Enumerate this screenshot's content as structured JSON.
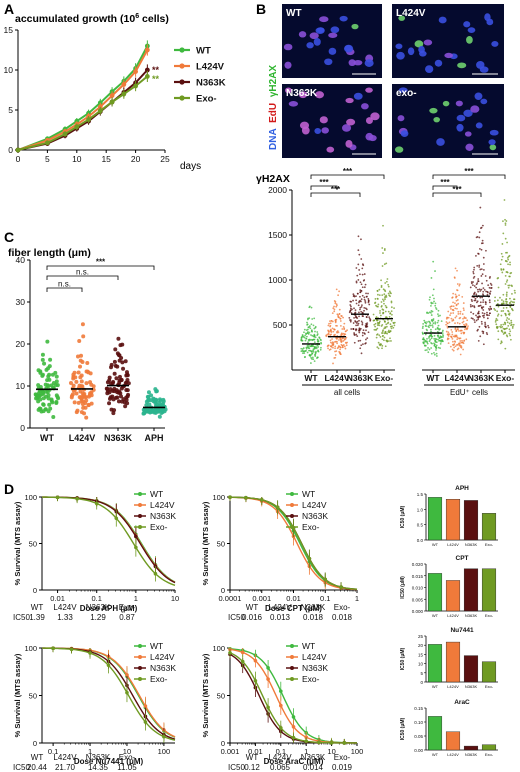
{
  "panels": {
    "A": "A",
    "B": "B",
    "C": "C",
    "D": "D"
  },
  "colors": {
    "WT": "#3fb93f",
    "L424V": "#f07a3a",
    "N363K": "#5a1010",
    "Exo-": "#6f9a22",
    "APH": "#2bb48e"
  },
  "panelA": {
    "ylabel": "accumulated growth (10",
    "ylabel_sup": "6",
    "ylabel_end": " cells)",
    "xunit": "days",
    "sig": "**",
    "legend": [
      "WT",
      "L424V",
      "N363K",
      "Exo-"
    ]
  },
  "panelB": {
    "images": [
      {
        "label": "WT",
        "label_color": "#ffffff"
      },
      {
        "label": "L424V",
        "label_color": "#ffffff"
      },
      {
        "label": "N363K",
        "label_color": "#ffffff"
      },
      {
        "label": "exo-",
        "label_color": "#ffffff"
      }
    ],
    "channel_labels": [
      {
        "text": "DNA",
        "color": "#2f5fe0"
      },
      {
        "text": "EdU",
        "color": "#d21a1a"
      },
      {
        "text": "γH2AX",
        "color": "#2fb52f"
      }
    ],
    "ylabel": "γH2AX",
    "groups": [
      "all cells",
      "EdU⁺ cells"
    ],
    "categories": [
      "WT",
      "L424V",
      "N363K",
      "Exo-",
      "WT",
      "L424V",
      "N363K",
      "Exo-"
    ],
    "sig": [
      "***",
      "***",
      "***",
      "***",
      "***",
      "***"
    ]
  },
  "panelC": {
    "ylabel": "fiber length (μm)",
    "sig": [
      "n.s.",
      "n.s.",
      "***"
    ]
  },
  "panelD": {
    "legend": [
      "WT",
      "L424V",
      "N363K",
      "Exo-"
    ],
    "ic50_head": "IC50",
    "ic50_table": [
      {
        "labels": [
          "WT",
          "L424V",
          "N363K",
          "Exo-"
        ],
        "values": [
          "1.39",
          "1.33",
          "1.29",
          "0.87"
        ]
      },
      {
        "labels": [
          "WT",
          "L424V",
          "N363K",
          "Exo-"
        ],
        "values": [
          "0.016",
          "0.013",
          "0.018",
          "0.018"
        ]
      },
      {
        "labels": [
          "WT",
          "L424V",
          "N363K",
          "Exo-"
        ],
        "values": [
          "20.44",
          "21.70",
          "14.35",
          "11.05"
        ]
      },
      {
        "labels": [
          "WT",
          "L424V",
          "N363K",
          "Exo-"
        ],
        "values": [
          "0.12",
          "0.065",
          "0.014",
          "0.019"
        ]
      }
    ]
  },
  "chart_data": [
    {
      "id": "A",
      "type": "line",
      "title": "",
      "xlabel": "days",
      "ylabel": "accumulated growth (10^6 cells)",
      "xlim": [
        0,
        25
      ],
      "ylim": [
        0,
        15
      ],
      "xticks": [
        0,
        5,
        10,
        15,
        20,
        25
      ],
      "yticks": [
        0,
        5,
        10,
        15
      ],
      "x": [
        0,
        5,
        8,
        10,
        12,
        14,
        16,
        18,
        20,
        22
      ],
      "series": [
        {
          "name": "WT",
          "values": [
            0,
            1.4,
            2.6,
            3.6,
            4.6,
            5.9,
            7.3,
            8.6,
            10.2,
            13.0
          ]
        },
        {
          "name": "L424V",
          "values": [
            0,
            1.2,
            2.3,
            3.2,
            4.2,
            5.4,
            6.8,
            8.2,
            9.8,
            12.5
          ]
        },
        {
          "name": "N363K",
          "values": [
            0,
            0.8,
            1.8,
            2.7,
            3.6,
            4.8,
            6.0,
            7.2,
            8.4,
            10.0
          ]
        },
        {
          "name": "Exo-",
          "values": [
            0,
            0.9,
            2.0,
            2.9,
            3.8,
            4.9,
            6.0,
            7.0,
            8.0,
            9.2
          ]
        }
      ]
    },
    {
      "id": "B",
      "type": "scatter",
      "title": "",
      "ylabel": "γH2AX",
      "ylim": [
        0,
        2000
      ],
      "yticks": [
        500,
        1000,
        1500,
        2000
      ],
      "categories": [
        "WT",
        "L424V",
        "N363K",
        "Exo-",
        "WT",
        "L424V",
        "N363K",
        "Exo-"
      ],
      "groups": [
        "all cells",
        "EdU⁺ cells"
      ],
      "medians": [
        290,
        370,
        620,
        570,
        410,
        480,
        820,
        720
      ]
    },
    {
      "id": "C",
      "type": "scatter",
      "title": "",
      "ylabel": "fiber length (μm)",
      "ylim": [
        0,
        40
      ],
      "yticks": [
        0,
        10,
        20,
        30,
        40
      ],
      "categories": [
        "WT",
        "L424V",
        "N363K",
        "APH"
      ],
      "medians": [
        9.2,
        9.3,
        10.1,
        4.9
      ]
    },
    {
      "id": "D1",
      "type": "line",
      "xlabel": "Dose APH (μM)",
      "ylabel": "% Survival (MTS assay)",
      "xscale": "log",
      "xlim": [
        0.004,
        10
      ],
      "ylim": [
        0,
        100
      ],
      "xticks": [
        0.01,
        0.1,
        1,
        10
      ],
      "xticklabels": [
        "0.01",
        "0.1",
        "1",
        "10"
      ],
      "yticks": [
        0,
        50,
        100
      ],
      "series": [
        {
          "name": "WT",
          "ic50": 1.39
        },
        {
          "name": "L424V",
          "ic50": 1.33
        },
        {
          "name": "N363K",
          "ic50": 1.29
        },
        {
          "name": "Exo-",
          "ic50": 0.87
        }
      ]
    },
    {
      "id": "D2",
      "type": "line",
      "xlabel": "Dose CPT (μM)",
      "ylabel": "% Survival (MTS assay)",
      "xscale": "log",
      "xlim": [
        0.0001,
        1
      ],
      "ylim": [
        0,
        100
      ],
      "xticks": [
        0.0001,
        0.001,
        0.01,
        0.1,
        1
      ],
      "xticklabels": [
        "0.0001",
        "0.001",
        "0.01",
        "0.1",
        "1"
      ],
      "yticks": [
        0,
        50,
        100
      ],
      "series": [
        {
          "name": "WT",
          "ic50": 0.016
        },
        {
          "name": "L424V",
          "ic50": 0.013
        },
        {
          "name": "N363K",
          "ic50": 0.018
        },
        {
          "name": "Exo-",
          "ic50": 0.018
        }
      ]
    },
    {
      "id": "D3",
      "type": "line",
      "xlabel": "Dose Nu7441 (μM)",
      "ylabel": "% Survival (MTS assay)",
      "xscale": "log",
      "xlim": [
        0.05,
        200
      ],
      "ylim": [
        0,
        100
      ],
      "xticks": [
        0.1,
        1,
        10,
        100
      ],
      "xticklabels": [
        "0.1",
        "1",
        "10",
        "100"
      ],
      "yticks": [
        0,
        50,
        100
      ],
      "series": [
        {
          "name": "WT",
          "ic50": 20.44
        },
        {
          "name": "L424V",
          "ic50": 21.7
        },
        {
          "name": "N363K",
          "ic50": 14.35
        },
        {
          "name": "Exo-",
          "ic50": 11.05
        }
      ]
    },
    {
      "id": "D4",
      "type": "line",
      "xlabel": "Dose AraC (μM)",
      "ylabel": "% Survival (MTS assay)",
      "xscale": "log",
      "xlim": [
        0.001,
        100
      ],
      "ylim": [
        0,
        100
      ],
      "xticks": [
        0.001,
        0.01,
        0.1,
        1,
        10,
        100
      ],
      "xticklabels": [
        "0.001",
        "0.01",
        "0.1",
        "1",
        "10",
        "100"
      ],
      "yticks": [
        0,
        50,
        100
      ],
      "series": [
        {
          "name": "WT",
          "ic50": 0.12
        },
        {
          "name": "L424V",
          "ic50": 0.065
        },
        {
          "name": "N363K",
          "ic50": 0.014
        },
        {
          "name": "Exo-",
          "ic50": 0.019
        }
      ]
    },
    {
      "id": "E1",
      "type": "bar",
      "title": "APH",
      "ylabel": "IC50 (μM)",
      "categories": [
        "WT",
        "L424V",
        "N363K",
        "Exo-"
      ],
      "values": [
        1.39,
        1.33,
        1.29,
        0.87
      ],
      "ylim": [
        0,
        1.5
      ],
      "yticks": [
        0,
        0.5,
        1.0,
        1.5
      ],
      "yticklabels": [
        "0.0",
        "0.5",
        "1.0",
        "1.5"
      ]
    },
    {
      "id": "E2",
      "type": "bar",
      "title": "CPT",
      "ylabel": "IC50 (μM)",
      "categories": [
        "WT",
        "L424V",
        "N363K",
        "Exo-"
      ],
      "values": [
        0.016,
        0.013,
        0.018,
        0.018
      ],
      "ylim": [
        0,
        0.02
      ],
      "yticks": [
        0,
        0.005,
        0.01,
        0.015,
        0.02
      ],
      "yticklabels": [
        "0.000",
        "0.005",
        "0.010",
        "0.015",
        "0.020"
      ]
    },
    {
      "id": "E3",
      "type": "bar",
      "title": "Nu7441",
      "ylabel": "IC50 (μM)",
      "categories": [
        "WT",
        "L424V",
        "N363K",
        "Exo-"
      ],
      "values": [
        20.44,
        21.7,
        14.35,
        11.05
      ],
      "ylim": [
        0,
        25
      ],
      "yticks": [
        0,
        5,
        10,
        15,
        20,
        25
      ],
      "yticklabels": [
        "0",
        "5",
        "10",
        "15",
        "20",
        "25"
      ]
    },
    {
      "id": "E4",
      "type": "bar",
      "title": "AraC",
      "ylabel": "IC50 (μM)",
      "categories": [
        "WT",
        "L424V",
        "N363K",
        "Exo-"
      ],
      "values": [
        0.12,
        0.065,
        0.014,
        0.019
      ],
      "ylim": [
        0,
        0.15
      ],
      "yticks": [
        0,
        0.05,
        0.1,
        0.15
      ],
      "yticklabels": [
        "0.00",
        "0.05",
        "0.10",
        "0.15"
      ]
    }
  ]
}
